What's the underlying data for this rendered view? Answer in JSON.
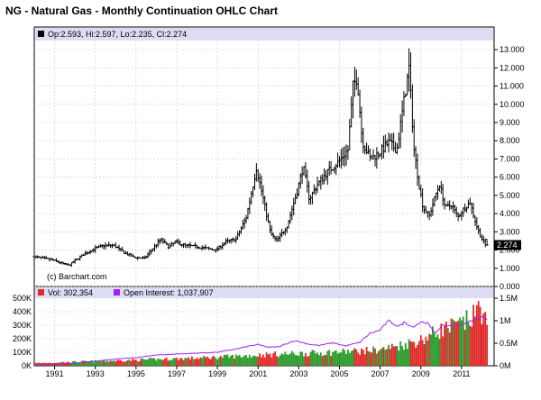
{
  "title": "NG - Natural Gas - Monthly Continuation OHLC Chart",
  "legend": {
    "ohlc": "Op:2.593, Hi:2.597, Lo:2.235, Cl:2.274",
    "volume": "Vol: 302,354",
    "open_interest": "Open Interest: 1,037,907",
    "last_price_tag": "2.274"
  },
  "watermark": "(c) Barchart.com",
  "colors": {
    "header_band": "#dcdcf5",
    "grid": "#c8c8c8",
    "price_bars": "#000000",
    "volume_up": "#2a9a2a",
    "volume_down": "#e02828",
    "open_interest_line": "#a020f0",
    "last_price_tag_bg": "#000000"
  },
  "chart_data": [
    {
      "type": "ohlc",
      "title": "NG - Natural Gas - Monthly Continuation OHLC Chart",
      "xlim": [
        1990.0,
        2012.6
      ],
      "ylim": [
        0,
        13.5
      ],
      "y_ticks": [
        "0.000",
        "1.000",
        "2.000",
        "3.000",
        "4.000",
        "5.000",
        "6.000",
        "7.000",
        "8.000",
        "9.000",
        "10.000",
        "11.000",
        "12.000",
        "13.000"
      ],
      "x_ticks": [
        "1991",
        "1993",
        "1995",
        "1997",
        "1999",
        "2001",
        "2003",
        "2005",
        "2007",
        "2009",
        "2011"
      ],
      "grid": true,
      "anchors": [
        [
          1990.0,
          1.65
        ],
        [
          1990.5,
          1.55
        ],
        [
          1991.0,
          1.45
        ],
        [
          1991.5,
          1.25
        ],
        [
          1991.8,
          1.15
        ],
        [
          1992.0,
          1.35
        ],
        [
          1992.5,
          1.75
        ],
        [
          1993.0,
          2.05
        ],
        [
          1993.5,
          2.25
        ],
        [
          1994.0,
          2.25
        ],
        [
          1994.5,
          1.85
        ],
        [
          1995.0,
          1.6
        ],
        [
          1995.5,
          1.55
        ],
        [
          1996.0,
          2.2
        ],
        [
          1996.3,
          2.6
        ],
        [
          1996.7,
          2.15
        ],
        [
          1997.0,
          2.45
        ],
        [
          1997.5,
          2.25
        ],
        [
          1998.0,
          2.2
        ],
        [
          1998.5,
          2.1
        ],
        [
          1999.0,
          2.0
        ],
        [
          1999.5,
          2.45
        ],
        [
          2000.0,
          2.6
        ],
        [
          2000.5,
          3.8
        ],
        [
          2000.8,
          5.4
        ],
        [
          2001.0,
          6.5
        ],
        [
          2001.3,
          5.0
        ],
        [
          2001.7,
          2.9
        ],
        [
          2002.0,
          2.5
        ],
        [
          2002.5,
          3.3
        ],
        [
          2003.0,
          5.2
        ],
        [
          2003.3,
          6.6
        ],
        [
          2003.6,
          4.8
        ],
        [
          2004.0,
          5.6
        ],
        [
          2004.5,
          6.3
        ],
        [
          2005.0,
          6.8
        ],
        [
          2005.5,
          7.5
        ],
        [
          2005.75,
          11.0
        ],
        [
          2005.95,
          11.5
        ],
        [
          2006.2,
          8.0
        ],
        [
          2006.6,
          7.0
        ],
        [
          2007.0,
          7.3
        ],
        [
          2007.5,
          7.9
        ],
        [
          2007.9,
          7.5
        ],
        [
          2008.2,
          9.8
        ],
        [
          2008.5,
          12.0
        ],
        [
          2008.75,
          7.5
        ],
        [
          2009.0,
          5.5
        ],
        [
          2009.2,
          4.3
        ],
        [
          2009.5,
          3.9
        ],
        [
          2009.8,
          5.0
        ],
        [
          2010.0,
          5.6
        ],
        [
          2010.3,
          4.3
        ],
        [
          2010.6,
          4.5
        ],
        [
          2010.9,
          3.8
        ],
        [
          2011.2,
          4.3
        ],
        [
          2011.5,
          4.6
        ],
        [
          2011.8,
          3.4
        ],
        [
          2012.0,
          2.8
        ],
        [
          2012.25,
          2.27
        ]
      ],
      "last_ohlc": {
        "open": 2.593,
        "high": 2.597,
        "low": 2.235,
        "close": 2.274
      }
    },
    {
      "type": "bar",
      "series_label": "Vol: 302,354",
      "ylim": [
        0,
        500000
      ],
      "y_ticks": [
        "0K",
        "100K",
        "200K",
        "300K",
        "400K",
        "500K"
      ],
      "anchors": [
        [
          1990.0,
          20000
        ],
        [
          1994.0,
          40000
        ],
        [
          1998.0,
          60000
        ],
        [
          2000.0,
          75000
        ],
        [
          2002.0,
          90000
        ],
        [
          2004.0,
          100000
        ],
        [
          2006.0,
          115000
        ],
        [
          2007.0,
          125000
        ],
        [
          2008.0,
          160000
        ],
        [
          2009.0,
          200000
        ],
        [
          2010.0,
          280000
        ],
        [
          2011.0,
          320000
        ],
        [
          2011.6,
          380000
        ],
        [
          2011.9,
          470000
        ],
        [
          2012.1,
          400000
        ],
        [
          2012.25,
          302354
        ]
      ]
    },
    {
      "type": "line",
      "series_label": "Open Interest: 1,037,907",
      "ylim": [
        0,
        1500000
      ],
      "y_ticks": [
        "0M",
        "0.5M",
        "1M",
        "1.5M"
      ],
      "anchors": [
        [
          1990.0,
          10000
        ],
        [
          1991.0,
          30000
        ],
        [
          1992.0,
          60000
        ],
        [
          1993.0,
          100000
        ],
        [
          1994.0,
          150000
        ],
        [
          1995.0,
          180000
        ],
        [
          1996.0,
          240000
        ],
        [
          1997.0,
          260000
        ],
        [
          1998.0,
          280000
        ],
        [
          1999.0,
          300000
        ],
        [
          2000.0,
          380000
        ],
        [
          2000.6,
          440000
        ],
        [
          2001.0,
          470000
        ],
        [
          2001.5,
          410000
        ],
        [
          2002.0,
          420000
        ],
        [
          2002.8,
          560000
        ],
        [
          2003.5,
          480000
        ],
        [
          2004.0,
          450000
        ],
        [
          2004.7,
          510000
        ],
        [
          2005.3,
          440000
        ],
        [
          2006.0,
          520000
        ],
        [
          2006.5,
          720000
        ],
        [
          2007.0,
          790000
        ],
        [
          2007.4,
          1000000
        ],
        [
          2007.9,
          870000
        ],
        [
          2008.2,
          970000
        ],
        [
          2008.6,
          860000
        ],
        [
          2009.0,
          970000
        ],
        [
          2009.3,
          960000
        ],
        [
          2009.7,
          720000
        ],
        [
          2010.0,
          880000
        ],
        [
          2010.5,
          890000
        ],
        [
          2011.0,
          920000
        ],
        [
          2011.5,
          1000000
        ],
        [
          2011.8,
          1050000
        ],
        [
          2012.0,
          1080000
        ],
        [
          2012.25,
          1037907
        ]
      ]
    }
  ]
}
